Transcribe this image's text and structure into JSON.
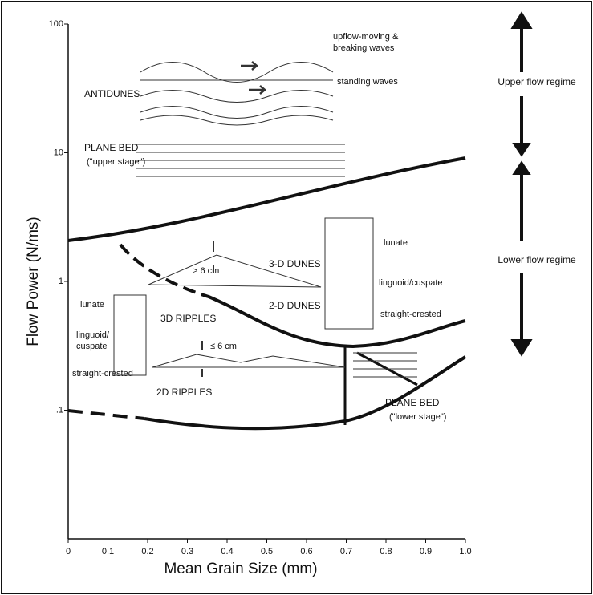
{
  "axes": {
    "x_title": "Mean Grain Size (mm)",
    "y_title": "Flow Power (N/ms)",
    "y_scale": "log",
    "xlim": [
      0,
      1
    ],
    "ylim": [
      0.01,
      100
    ],
    "xticks": [
      0,
      {
        "value": 0.1,
        "label": "0.1"
      },
      {
        "value": 0.2,
        "label": "0.2"
      },
      {
        "value": 0.3,
        "label": "0.3"
      },
      {
        "value": 0.4,
        "label": "0.4"
      },
      {
        "value": 0.5,
        "label": "0.5"
      },
      {
        "value": 0.6,
        "label": "0.6"
      },
      {
        "value": 0.7,
        "label": "0.7"
      },
      {
        "value": 0.8,
        "label": "0.8"
      },
      {
        "value": 0.9,
        "label": "0.9"
      },
      {
        "value": 1,
        "label": "1.0"
      }
    ],
    "yticks": [
      {
        "value": 0.1,
        "label": ".1"
      },
      1,
      10,
      100
    ]
  },
  "regions": {
    "antidunes": "ANTIDUNES",
    "upflow": "upflow-moving &",
    "breaking": "breaking waves",
    "standing": "standing waves",
    "plane_bed_upper": "PLANE BED",
    "upper_stage": "(\"upper stage\")",
    "dunes3d": "3-D DUNES",
    "dunes2d": "2-D DUNES",
    "gt6": "> 6 cm",
    "lunate_d": "lunate",
    "linguoid_d": "linguoid/cuspate",
    "straight_d": "straight-crested",
    "ripples3d": "3D RIPPLES",
    "ripples2d": "2D RIPPLES",
    "lt6": "≤ 6 cm",
    "lunate_r": "lunate",
    "linguoid_r": "linguoid/",
    "cuspate_r": "cuspate",
    "straight_r": "straight-crested",
    "plane_bed_lower": "PLANE BED",
    "lower_stage": "(\"lower stage\")"
  },
  "regimes": {
    "upper": "Upper flow regime",
    "lower": "Lower flow regime"
  }
}
